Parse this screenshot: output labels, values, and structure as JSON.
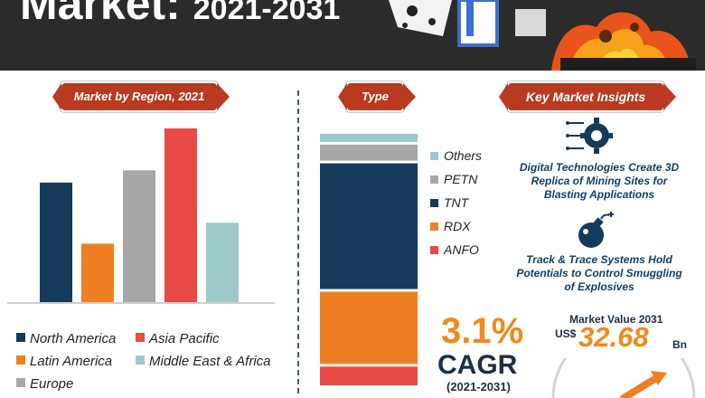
{
  "header": {
    "title_line": "Market:",
    "title_years": "2021-2031"
  },
  "sections": {
    "region_title": "Market by Region, 2021",
    "type_title": "Type",
    "insights_title": "Key Market Insights"
  },
  "chart_data": [
    {
      "type": "bar",
      "title": "Market by Region, 2021",
      "categories": [
        "North America",
        "Latin America",
        "Europe",
        "Asia Pacific",
        "Middle East & Africa"
      ],
      "values": [
        69,
        34,
        76,
        100,
        46
      ],
      "ylim": [
        0,
        100
      ],
      "grid": false,
      "axis_labels": false,
      "colors": [
        "#163a5a",
        "#f07f22",
        "#a7a7a7",
        "#e84a45",
        "#9ec9cb"
      ],
      "legend": {
        "placement": "bottom",
        "entries": [
          "North America",
          "Asia Pacific",
          "Latin America",
          "Middle East & Africa",
          "Europe"
        ]
      }
    },
    {
      "type": "bar",
      "stacked": true,
      "title": "Type",
      "categories": [
        "Type"
      ],
      "series": [
        {
          "name": "ANFO",
          "values": [
            7
          ]
        },
        {
          "name": "RDX",
          "values": [
            27
          ]
        },
        {
          "name": "TNT",
          "values": [
            47
          ]
        },
        {
          "name": "PETN",
          "values": [
            6
          ]
        },
        {
          "name": "Others",
          "values": [
            3
          ]
        }
      ],
      "colors": {
        "ANFO": "#e84a45",
        "RDX": "#f07f22",
        "TNT": "#163a5a",
        "PETN": "#a7a7a7",
        "Others": "#9ec9cb"
      },
      "legend": {
        "placement": "right",
        "entries": [
          "Others",
          "PETN",
          "TNT",
          "RDX",
          "ANFO"
        ]
      }
    }
  ],
  "insights": [
    {
      "icon": "gear-circuit-icon",
      "text": "Digital Technologies Create 3D Replica of Mining Sites for Blasting Applications"
    },
    {
      "icon": "bomb-icon",
      "text": "Track & Trace Systems Hold Potentials to Control Smuggling of Explosives"
    }
  ],
  "cagr": {
    "value": "3.1%",
    "label": "CAGR",
    "period": "(2021-2031)"
  },
  "market_value": {
    "label": "Market Value 2031",
    "currency": "US$",
    "amount": "32.68",
    "unit": "Bn"
  },
  "colors": {
    "dark": "#2b2b2b",
    "navy": "#163a5a",
    "orange": "#f07f22",
    "red": "#e84a45",
    "grey": "#a7a7a7",
    "teal": "#9ec9cb",
    "ribbon": "#b83a20"
  }
}
